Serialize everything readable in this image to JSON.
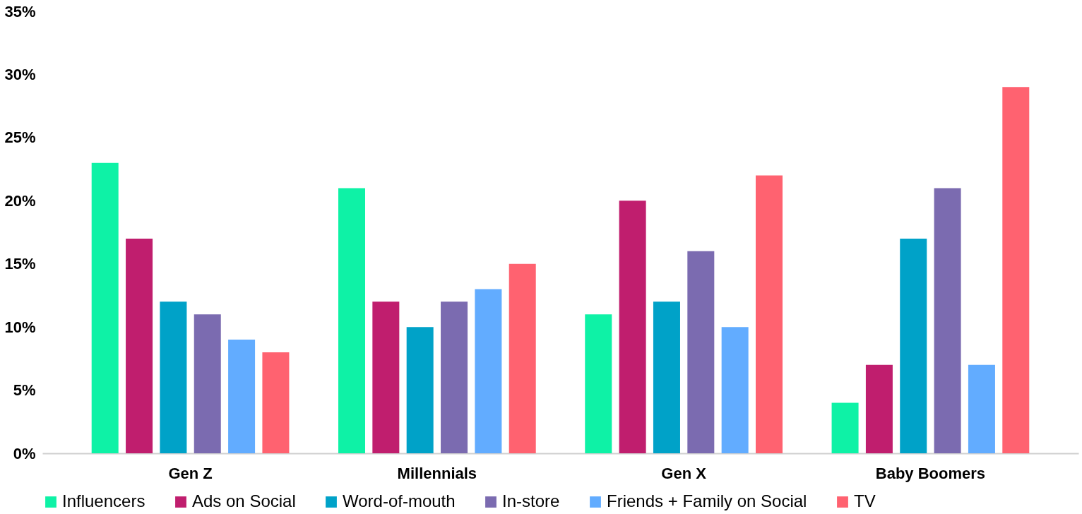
{
  "chart_data": {
    "type": "bar",
    "categories": [
      "Gen Z",
      "Millennials",
      "Gen X",
      "Baby Boomers"
    ],
    "series": [
      {
        "name": "Influencers",
        "color": "#0ef2a6",
        "values": [
          23,
          21,
          11,
          4
        ]
      },
      {
        "name": "Ads on Social",
        "color": "#c01e6e",
        "values": [
          17,
          12,
          20,
          7
        ]
      },
      {
        "name": "Word-of-mouth",
        "color": "#00a2c8",
        "values": [
          12,
          10,
          12,
          17
        ]
      },
      {
        "name": "In-store",
        "color": "#7b6bb0",
        "values": [
          11,
          12,
          16,
          21
        ]
      },
      {
        "name": "Friends + Family on Social",
        "color": "#62acff",
        "values": [
          9,
          13,
          10,
          7
        ]
      },
      {
        "name": "TV",
        "color": "#ff6270",
        "values": [
          8,
          15,
          22,
          29
        ]
      }
    ],
    "ylim": [
      0,
      35
    ],
    "yticks": [
      {
        "value": 0,
        "label": "0%"
      },
      {
        "value": 5,
        "label": "5%"
      },
      {
        "value": 10,
        "label": "10%"
      },
      {
        "value": 15,
        "label": "15%"
      },
      {
        "value": 20,
        "label": "20%"
      },
      {
        "value": 25,
        "label": "25%"
      },
      {
        "value": 30,
        "label": "30%"
      },
      {
        "value": 35,
        "label": "35%"
      }
    ],
    "grid": false,
    "legend": "bottom"
  }
}
